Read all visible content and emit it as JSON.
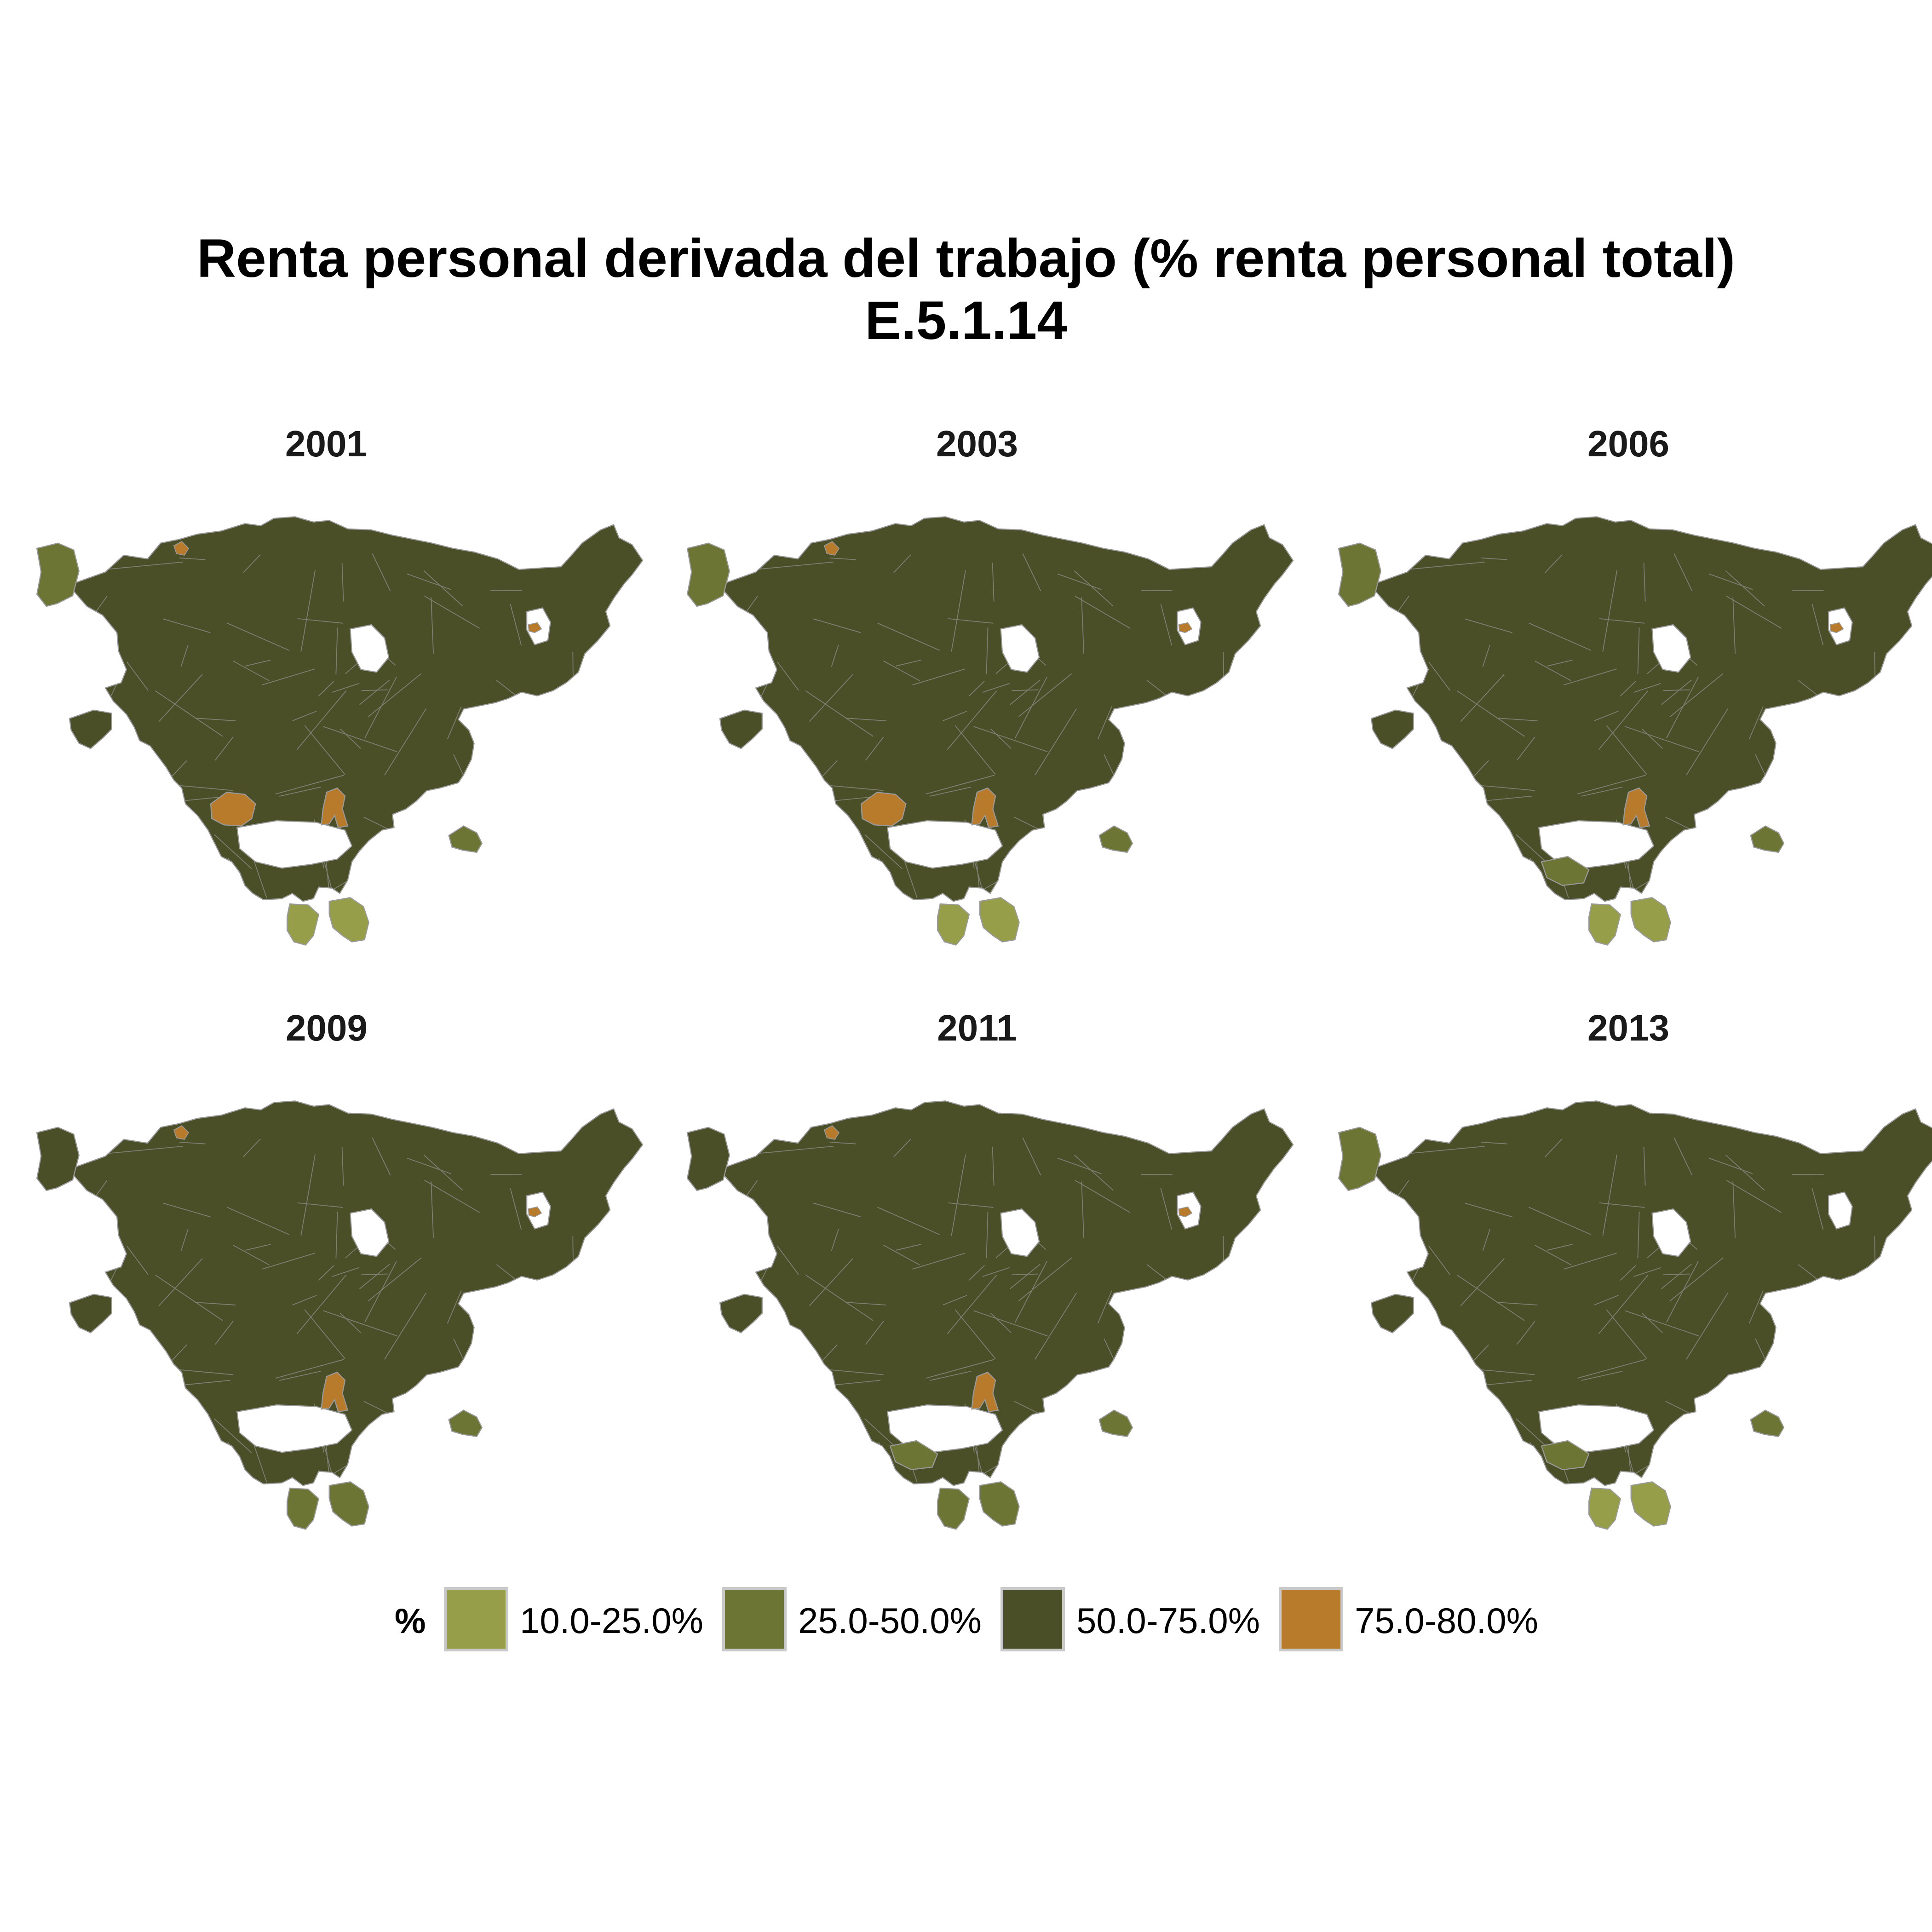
{
  "title": {
    "line1": "Renta personal derivada del trabajo (% renta personal total)",
    "line2": "E.5.1.14"
  },
  "colors": {
    "c1": "#979E4A",
    "c2": "#6D7535",
    "c3": "#4A4F27",
    "c4": "#B87A2B",
    "boundary": "#9A9A9A"
  },
  "legend": {
    "title": "%",
    "items": [
      {
        "label": "10.0-25.0%",
        "color": "#979E4A"
      },
      {
        "label": "25.0-50.0%",
        "color": "#6D7535"
      },
      {
        "label": "50.0-75.0%",
        "color": "#4A4F27"
      },
      {
        "label": "75.0-80.0%",
        "color": "#B87A2B"
      }
    ]
  },
  "panels": [
    {
      "year": "2001",
      "west": "c2",
      "south": "c1",
      "southwest": "c3",
      "east": "c2",
      "big_orange": true,
      "center_orange": true,
      "north_orange": true,
      "ne_orange": true
    },
    {
      "year": "2003",
      "west": "c2",
      "south": "c1",
      "southwest": "c3",
      "east": "c2",
      "big_orange": true,
      "center_orange": true,
      "north_orange": true,
      "ne_orange": true
    },
    {
      "year": "2006",
      "west": "c2",
      "south": "c1",
      "southwest": "c2",
      "east": "c2",
      "big_orange": false,
      "center_orange": true,
      "north_orange": false,
      "ne_orange": true
    },
    {
      "year": "2009",
      "west": "c3",
      "south": "c2",
      "southwest": "c3",
      "east": "c2",
      "big_orange": false,
      "center_orange": true,
      "north_orange": true,
      "ne_orange": true
    },
    {
      "year": "2011",
      "west": "c3",
      "south": "c2",
      "southwest": "c2",
      "east": "c2",
      "big_orange": false,
      "center_orange": true,
      "north_orange": true,
      "ne_orange": true
    },
    {
      "year": "2013",
      "west": "c2",
      "south": "c1",
      "southwest": "c2",
      "east": "c2",
      "big_orange": false,
      "center_orange": false,
      "north_orange": false,
      "ne_orange": false
    }
  ]
}
